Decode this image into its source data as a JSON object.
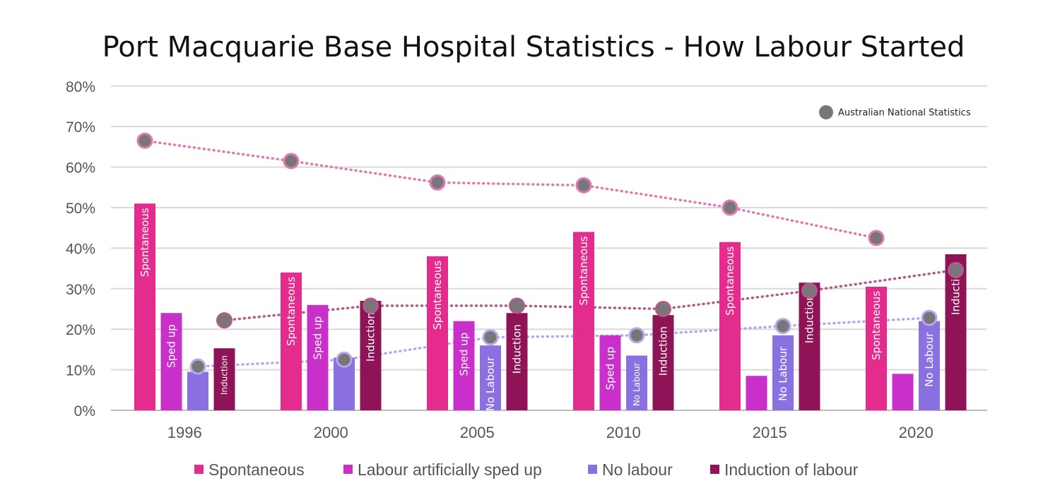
{
  "chart_data": {
    "type": "bar",
    "title": "Port Macquarie Base Hospital Statistics  - How Labour Started",
    "xlabel": "",
    "ylabel": "",
    "ylim": [
      0,
      80
    ],
    "yticks": [
      "0%",
      "10%",
      "20%",
      "30%",
      "40%",
      "50%",
      "60%",
      "70%",
      "80%"
    ],
    "categories": [
      "1996",
      "2000",
      "2005",
      "2010",
      "2015",
      "2020"
    ],
    "grid": true,
    "legend_position": "bottom",
    "series": [
      {
        "name": "Spontaneous",
        "color": "#e32c8e",
        "values": [
          51,
          34,
          38,
          44,
          41.5,
          30.5
        ],
        "bar_labels": [
          "Spontaneous",
          "Spontaneous",
          "Spontaneous",
          "Spontaneous",
          "Spontaneous",
          "Spontaneous"
        ]
      },
      {
        "name": "Labour artificially sped up",
        "color": "#c930c9",
        "values": [
          24,
          26,
          22,
          18.5,
          8.5,
          9
        ],
        "bar_labels": [
          "Sped up",
          "Sped up",
          "Sped up",
          "Sped up",
          "",
          ""
        ]
      },
      {
        "name": "No labour",
        "color": "#8a70e0",
        "values": [
          9.5,
          13,
          16,
          13.5,
          18.5,
          22
        ],
        "bar_labels": [
          "",
          "",
          "No Labour",
          "No Labour",
          "No Labour",
          "No Labour"
        ]
      },
      {
        "name": "Induction of labour",
        "color": "#8f1457",
        "values": [
          15.3,
          27,
          24,
          23.5,
          31.5,
          38.5
        ],
        "bar_labels": [
          "Induction",
          "Induction",
          "Induction",
          "Induction",
          "Induction",
          "Induction"
        ]
      }
    ],
    "national_statistics": {
      "legend_label": "Australian National Statistics",
      "marker_color": "#777777",
      "spontaneous": {
        "color": "#e07ab4",
        "values": [
          66.5,
          61.5,
          56.2,
          55.5,
          50,
          42.5
        ]
      },
      "induction": {
        "color": "#b35a8c",
        "values": [
          22.2,
          25.8,
          25.8,
          25,
          29.5,
          34.6
        ]
      },
      "no_labour": {
        "color": "#b6a8ea",
        "values": [
          10.8,
          12.5,
          18,
          18.5,
          20.8,
          22.8
        ]
      }
    }
  }
}
